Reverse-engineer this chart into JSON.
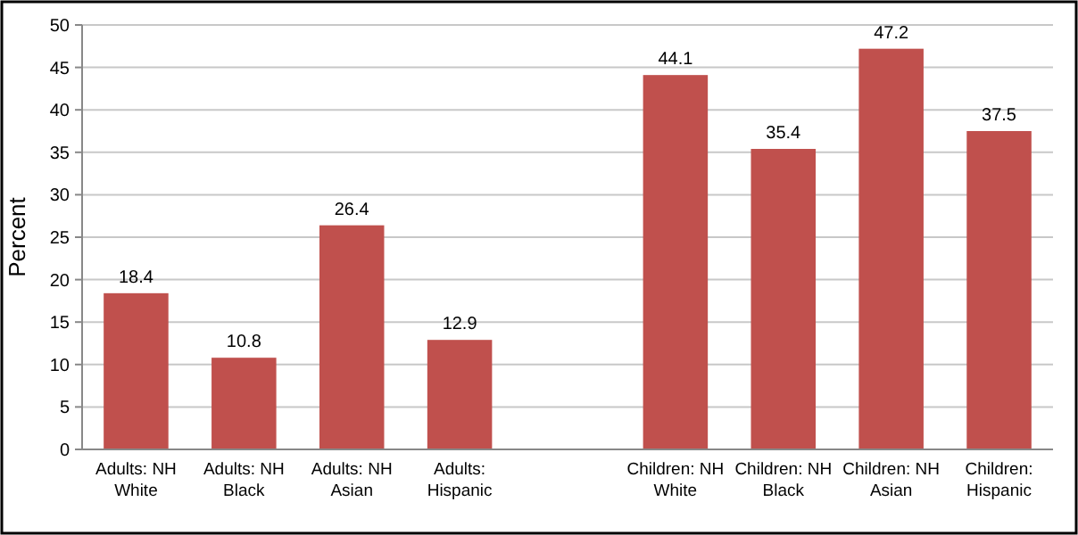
{
  "chart_data": {
    "type": "bar",
    "ylabel": "Percent",
    "categories": [
      "Adults: NH White",
      "Adults: NH Black",
      "Adults: NH Asian",
      "Adults: Hispanic",
      null,
      "Children: NH White",
      "Children: NH Black",
      "Children: NH Asian",
      "Children: Hispanic"
    ],
    "values": [
      18.4,
      10.8,
      26.4,
      12.9,
      null,
      44.1,
      35.4,
      47.2,
      37.5
    ],
    "color": "#c0504d",
    "ylim": [
      0,
      50
    ],
    "yticks": [
      0,
      5,
      10,
      15,
      20,
      25,
      30,
      35,
      40,
      45,
      50
    ],
    "grid": "y",
    "data_labels": true
  }
}
